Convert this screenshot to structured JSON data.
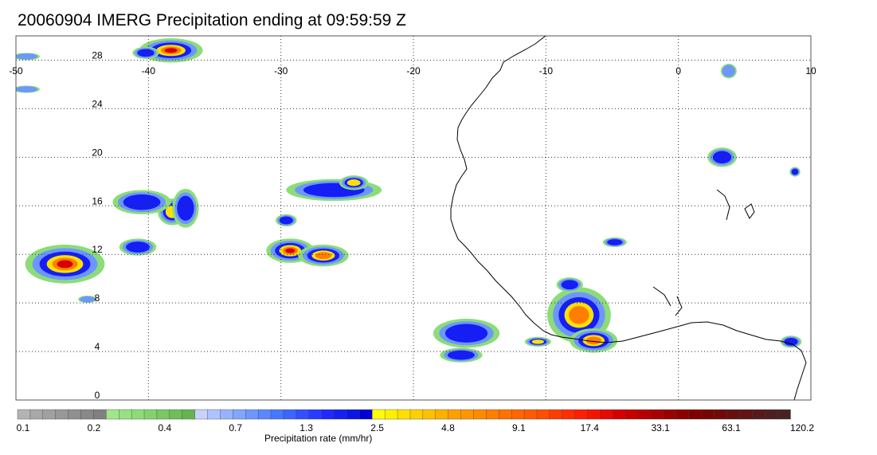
{
  "title": "20060904 IMERG Precipitation ending at 09:59:59 Z",
  "map": {
    "lon_range": [
      -50,
      10
    ],
    "lat_range": [
      0,
      30
    ],
    "lon_ticks": [
      {
        "value": -50,
        "label": "-50"
      },
      {
        "value": -40,
        "label": "-40"
      },
      {
        "value": -30,
        "label": "-30"
      },
      {
        "value": -20,
        "label": "-20"
      },
      {
        "value": -10,
        "label": "-10"
      },
      {
        "value": 0,
        "label": "0"
      },
      {
        "value": 10,
        "label": "10"
      }
    ],
    "lat_ticks": [
      {
        "value": 0,
        "label": "0"
      },
      {
        "value": 4,
        "label": "4"
      },
      {
        "value": 8,
        "label": "8"
      },
      {
        "value": 12,
        "label": "12"
      },
      {
        "value": 16,
        "label": "16"
      },
      {
        "value": 20,
        "label": "20"
      },
      {
        "value": 24,
        "label": "24"
      },
      {
        "value": 28,
        "label": "28"
      }
    ],
    "grid": "dotted",
    "coastline_color": "#000000",
    "precip_cells": [
      {
        "lon": -46.3,
        "lat": 11.2,
        "rx": 3.0,
        "ry": 1.6,
        "level": 30
      },
      {
        "lon": -38.2,
        "lat": 15.5,
        "rx": 1.1,
        "ry": 1.1,
        "level": 5
      },
      {
        "lon": -40.5,
        "lat": 16.3,
        "rx": 2.2,
        "ry": 1.0,
        "level": 2
      },
      {
        "lon": -38.3,
        "lat": 28.8,
        "rx": 2.4,
        "ry": 1.0,
        "level": 20
      },
      {
        "lon": -40.2,
        "lat": 28.6,
        "rx": 1.0,
        "ry": 0.5,
        "level": 3
      },
      {
        "lon": -49.2,
        "lat": 28.3,
        "rx": 1.0,
        "ry": 0.3,
        "level": 1.5
      },
      {
        "lon": -49.2,
        "lat": 25.6,
        "rx": 1.0,
        "ry": 0.3,
        "level": 1.2
      },
      {
        "lon": -29.3,
        "lat": 12.3,
        "rx": 1.8,
        "ry": 1.0,
        "level": 25
      },
      {
        "lon": -26.8,
        "lat": 11.9,
        "rx": 1.9,
        "ry": 0.9,
        "level": 16
      },
      {
        "lon": -29.6,
        "lat": 14.8,
        "rx": 0.8,
        "ry": 0.5,
        "level": 2
      },
      {
        "lon": -26.0,
        "lat": 17.3,
        "rx": 3.6,
        "ry": 0.9,
        "level": 3
      },
      {
        "lon": -24.5,
        "lat": 17.9,
        "rx": 1.1,
        "ry": 0.6,
        "level": 6
      },
      {
        "lon": -7.5,
        "lat": 7.0,
        "rx": 2.4,
        "ry": 2.3,
        "level": 9
      },
      {
        "lon": -6.4,
        "lat": 4.9,
        "rx": 1.8,
        "ry": 1.0,
        "level": 12
      },
      {
        "lon": -8.2,
        "lat": 9.5,
        "rx": 1.0,
        "ry": 0.6,
        "level": 3
      },
      {
        "lon": -16.0,
        "lat": 5.5,
        "rx": 2.5,
        "ry": 1.2,
        "level": 2
      },
      {
        "lon": -16.4,
        "lat": 3.7,
        "rx": 1.6,
        "ry": 0.6,
        "level": 2
      },
      {
        "lon": -10.6,
        "lat": 4.8,
        "rx": 1.0,
        "ry": 0.4,
        "level": 5
      },
      {
        "lon": -4.8,
        "lat": 13.0,
        "rx": 0.9,
        "ry": 0.4,
        "level": 2
      },
      {
        "lon": 3.3,
        "lat": 20.0,
        "rx": 1.1,
        "ry": 0.8,
        "level": 3
      },
      {
        "lon": 8.8,
        "lat": 18.8,
        "rx": 0.4,
        "ry": 0.4,
        "level": 2
      },
      {
        "lon": 3.8,
        "lat": 27.1,
        "rx": 0.6,
        "ry": 0.6,
        "level": 1.5
      },
      {
        "lon": 8.5,
        "lat": 4.8,
        "rx": 0.8,
        "ry": 0.5,
        "level": 2
      },
      {
        "lon": -44.6,
        "lat": 8.3,
        "rx": 0.7,
        "ry": 0.3,
        "level": 1.5
      },
      {
        "lon": -40.8,
        "lat": 12.6,
        "rx": 1.4,
        "ry": 0.7,
        "level": 2
      },
      {
        "lon": -37.2,
        "lat": 15.8,
        "rx": 1.0,
        "ry": 1.6,
        "level": 3
      }
    ]
  },
  "colorbar": {
    "title": "Precipitation rate (mm/hr)",
    "labels": [
      {
        "value": "0.1"
      },
      {
        "value": "0.2"
      },
      {
        "value": "0.4"
      },
      {
        "value": "0.7"
      },
      {
        "value": "1.3"
      },
      {
        "value": "2.5"
      },
      {
        "value": "4.8"
      },
      {
        "value": "9.1"
      },
      {
        "value": "17.4"
      },
      {
        "value": "33.1"
      },
      {
        "value": "63.1"
      },
      {
        "value": "120.2"
      }
    ],
    "colors": [
      "#b4b4b4",
      "#a8a8a8",
      "#a0a0a0",
      "#989898",
      "#909090",
      "#888888",
      "#808080",
      "#a0e68c",
      "#96e182",
      "#8cdc78",
      "#82d26e",
      "#78c864",
      "#6ebe5a",
      "#64b450",
      "#c8d2ff",
      "#afc3ff",
      "#96b4ff",
      "#82a5ff",
      "#6e96ff",
      "#5a87ff",
      "#4678ff",
      "#3c64ff",
      "#3250ff",
      "#283cff",
      "#1e28ff",
      "#141ef5",
      "#0a14e6",
      "#0000d2",
      "#ffff00",
      "#fff000",
      "#ffe000",
      "#ffd000",
      "#ffc000",
      "#ffb000",
      "#ffa000",
      "#ff9600",
      "#ff8a00",
      "#ff7e00",
      "#ff7200",
      "#ff6600",
      "#ff5a00",
      "#ff4e00",
      "#ff3c00",
      "#ff2d00",
      "#ff1e00",
      "#f51400",
      "#e60a00",
      "#d70000",
      "#c80000",
      "#b90000",
      "#aa0000",
      "#9b0000",
      "#8c0000",
      "#800000",
      "#780505",
      "#700a0a",
      "#680f0f",
      "#601414",
      "#581919",
      "#501e1e",
      "#482323"
    ]
  }
}
